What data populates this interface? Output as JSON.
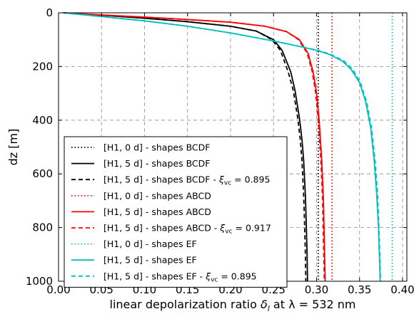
{
  "chart_data": {
    "type": "line",
    "xlabel_prefix": "linear depolarization ratio",
    "xlabel_symbol": "δ",
    "xlabel_subscript": "l",
    "xlabel_suffix": "at λ = 532 nm",
    "ylabel": "dz [m]",
    "xlim": [
      0.0,
      0.405
    ],
    "ylim": [
      1000,
      0
    ],
    "y_inverted": true,
    "grid": true,
    "legend_position": "lower-left",
    "x_ticks": [
      "0.00",
      "0.05",
      "0.10",
      "0.15",
      "0.20",
      "0.25",
      "0.30",
      "0.35",
      "0.40"
    ],
    "y_ticks": [
      "0",
      "200",
      "400",
      "600",
      "800",
      "1000"
    ],
    "series": [
      {
        "name": "[H1, 0 d] - shapes BCDF",
        "color": "#000000",
        "style": "dotted",
        "x": [
          0.302,
          0.302
        ],
        "y": [
          0,
          1000
        ]
      },
      {
        "name": "[H1, 5 d] - shapes BCDF",
        "color": "#000000",
        "style": "solid",
        "x": [
          0.005,
          0.05,
          0.1,
          0.15,
          0.2,
          0.23,
          0.25,
          0.26,
          0.27,
          0.275,
          0.28,
          0.283,
          0.285,
          0.287,
          0.288,
          0.289,
          0.2895
        ],
        "y": [
          0,
          9,
          20,
          33,
          50,
          68,
          100,
          140,
          220,
          290,
          390,
          470,
          550,
          680,
          780,
          900,
          1000
        ]
      },
      {
        "name": "[H1, 5 d] - shapes BCDF - ξ_vc = 0.895",
        "color": "#000000",
        "style": "dashed",
        "x": [
          0.005,
          0.05,
          0.1,
          0.15,
          0.2,
          0.23,
          0.248,
          0.258,
          0.267,
          0.273,
          0.278,
          0.281,
          0.283,
          0.285,
          0.286,
          0.287,
          0.2875
        ],
        "y": [
          0,
          9,
          20,
          33,
          50,
          68,
          100,
          140,
          220,
          290,
          390,
          470,
          550,
          680,
          780,
          900,
          1000
        ]
      },
      {
        "name": "[H1, 0 d] - shapes ABCD",
        "color": "#ff0000",
        "style": "dotted",
        "x": [
          0.318,
          0.318
        ],
        "y": [
          0,
          1000
        ]
      },
      {
        "name": "[H1, 5 d] - shapes ABCD",
        "color": "#ff0000",
        "style": "solid",
        "x": [
          0.005,
          0.05,
          0.1,
          0.15,
          0.2,
          0.24,
          0.265,
          0.28,
          0.29,
          0.296,
          0.3,
          0.303,
          0.306,
          0.308,
          0.309,
          0.31
        ],
        "y": [
          0,
          8,
          16,
          25,
          35,
          50,
          70,
          100,
          150,
          220,
          300,
          400,
          550,
          700,
          850,
          1000
        ]
      },
      {
        "name": "[H1, 5 d] - shapes ABCD - ξ_vc = 0.917",
        "color": "#ff0000",
        "style": "dashed",
        "x": [
          0.005,
          0.05,
          0.1,
          0.15,
          0.2,
          0.24,
          0.265,
          0.279,
          0.289,
          0.295,
          0.299,
          0.302,
          0.305,
          0.307,
          0.308,
          0.309
        ],
        "y": [
          0,
          8,
          16,
          25,
          35,
          50,
          70,
          100,
          150,
          220,
          300,
          400,
          550,
          700,
          850,
          1000
        ]
      },
      {
        "name": "[H1, 0 d] - shapes EF",
        "color": "#00bfbf",
        "style": "dotted",
        "x": [
          0.388,
          0.388
        ],
        "y": [
          0,
          1000
        ]
      },
      {
        "name": "[H1, 5 d] - shapes EF",
        "color": "#00bfbf",
        "style": "solid",
        "x": [
          0.005,
          0.05,
          0.1,
          0.15,
          0.2,
          0.25,
          0.28,
          0.3,
          0.315,
          0.33,
          0.34,
          0.35,
          0.357,
          0.363,
          0.367,
          0.37,
          0.372,
          0.373,
          0.374
        ],
        "y": [
          0,
          14,
          30,
          50,
          75,
          105,
          125,
          140,
          155,
          180,
          210,
          260,
          330,
          430,
          550,
          680,
          800,
          900,
          1000
        ]
      },
      {
        "name": "[H1, 5 d] - shapes EF - ξ_vc = 0.895",
        "color": "#00bfbf",
        "style": "dashed",
        "x": [
          0.005,
          0.05,
          0.1,
          0.15,
          0.2,
          0.25,
          0.28,
          0.302,
          0.317,
          0.332,
          0.342,
          0.351,
          0.358,
          0.364,
          0.368,
          0.371,
          0.3725,
          0.3735,
          0.3745
        ],
        "y": [
          0,
          14,
          30,
          50,
          75,
          105,
          125,
          140,
          155,
          180,
          210,
          260,
          330,
          430,
          550,
          680,
          800,
          900,
          1000
        ]
      }
    ],
    "legend": [
      {
        "prefix": "[H1, 0 d] - shapes BCDF",
        "has_xi": false,
        "xi_value": ""
      },
      {
        "prefix": "[H1, 5 d] - shapes BCDF",
        "has_xi": false,
        "xi_value": ""
      },
      {
        "prefix": "[H1, 5 d] - shapes BCDF -",
        "has_xi": true,
        "xi_value": "= 0.895"
      },
      {
        "prefix": "[H1, 0 d] - shapes ABCD",
        "has_xi": false,
        "xi_value": ""
      },
      {
        "prefix": "[H1, 5 d] - shapes ABCD",
        "has_xi": false,
        "xi_value": ""
      },
      {
        "prefix": "[H1, 5 d] - shapes ABCD -",
        "has_xi": true,
        "xi_value": "= 0.917"
      },
      {
        "prefix": "[H1, 0 d] - shapes EF",
        "has_xi": false,
        "xi_value": ""
      },
      {
        "prefix": "[H1, 5 d] - shapes EF",
        "has_xi": false,
        "xi_value": ""
      },
      {
        "prefix": "[H1, 5 d] - shapes EF -",
        "has_xi": true,
        "xi_value": "= 0.895"
      }
    ],
    "xi_symbol": "ξ",
    "xi_subscript": "vc"
  }
}
